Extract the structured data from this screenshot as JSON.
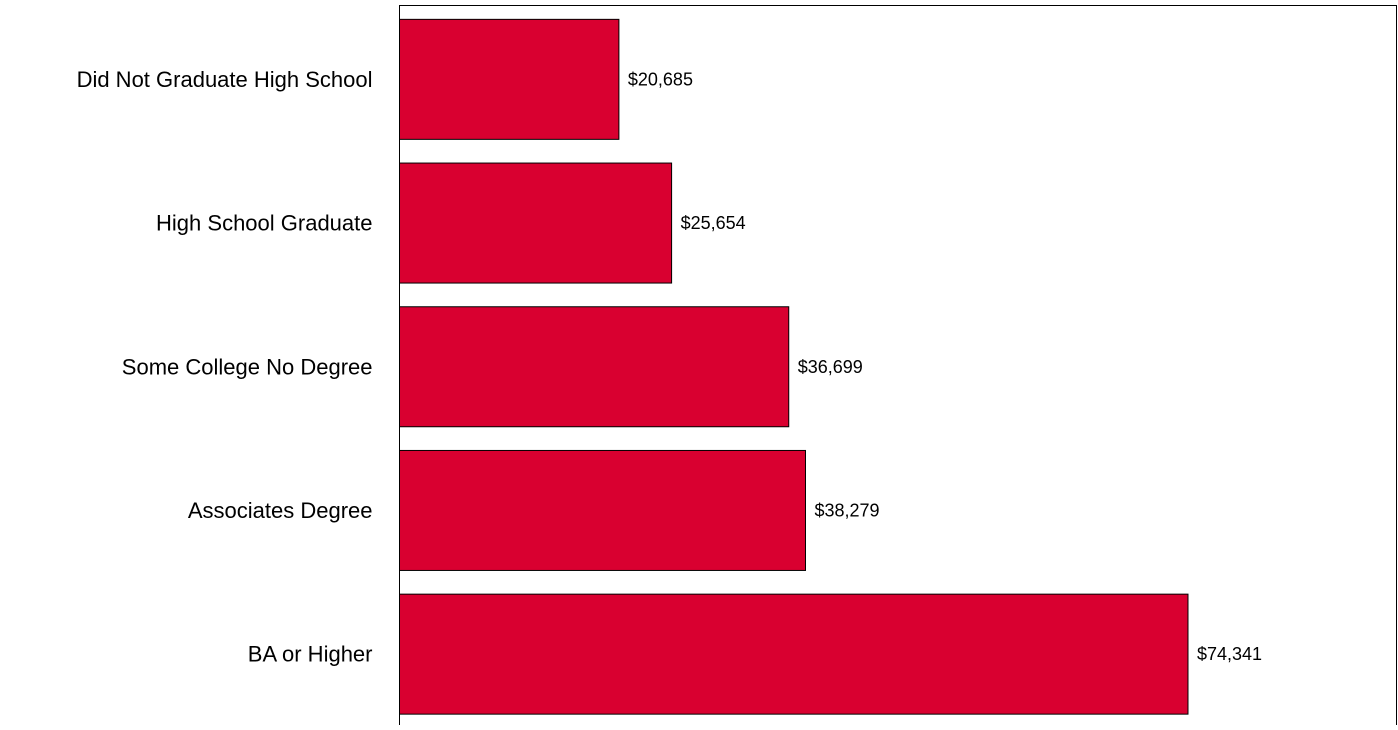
{
  "chart_data": {
    "type": "bar",
    "orientation": "horizontal",
    "categories": [
      "Did Not Graduate High School",
      "High School Graduate",
      "Some College No Degree",
      "Associates Degree",
      "BA or Higher"
    ],
    "values": [
      20685,
      25654,
      36699,
      38279,
      74341
    ],
    "data_labels": [
      "$20,685",
      "$25,654",
      "$36,699",
      "$38,279",
      "$74,341"
    ],
    "title": "",
    "xlabel": "",
    "ylabel": "",
    "xlim": [
      0,
      94000
    ],
    "grid": false,
    "legend": "none",
    "bar_color": "#d90030",
    "bar_edge_color": "#000000",
    "frame_color": "#000000"
  }
}
